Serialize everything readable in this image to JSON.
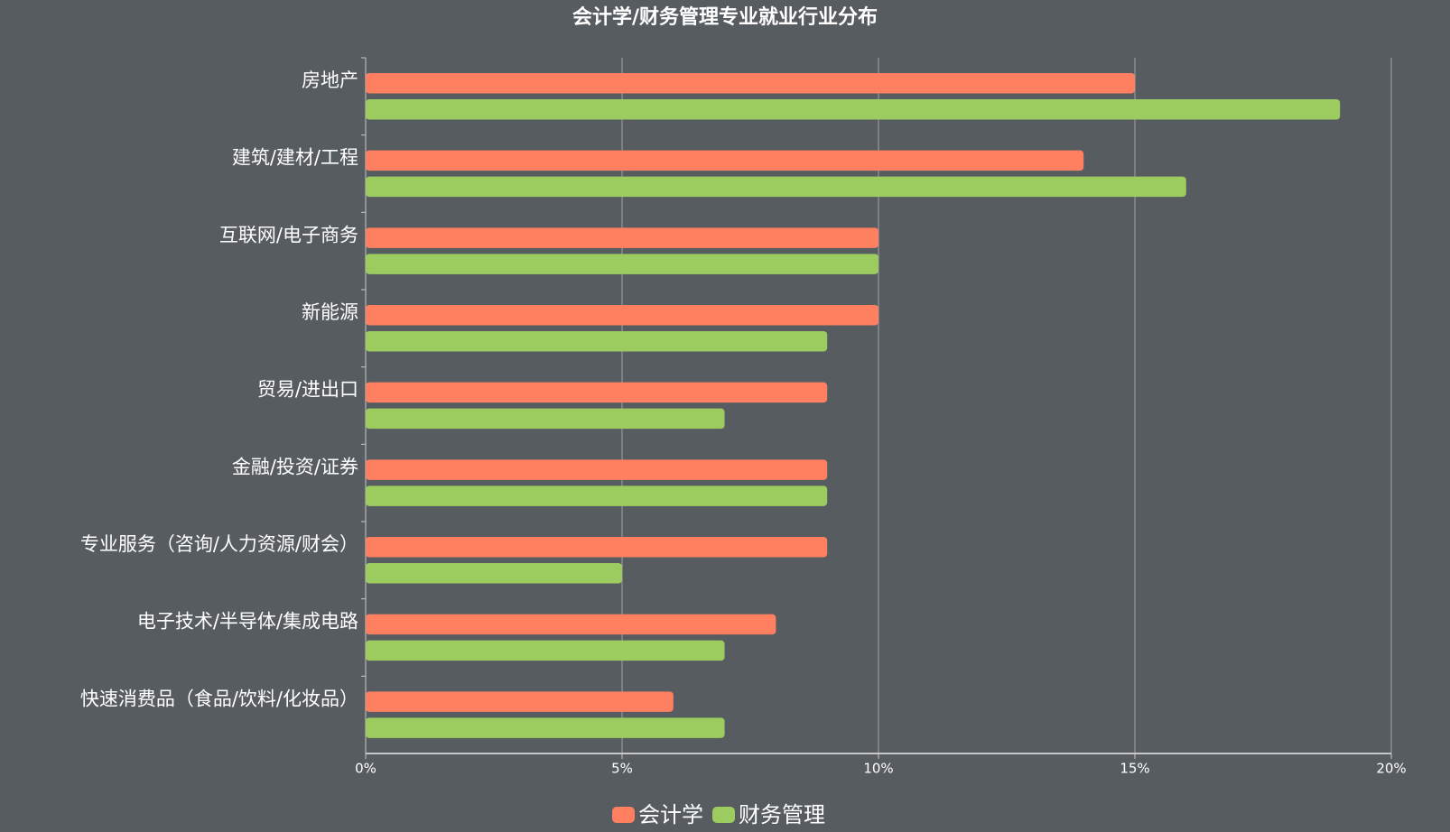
{
  "chart_data": {
    "type": "bar",
    "orientation": "horizontal",
    "title": "会计学/财务管理专业就业行业分布",
    "categories": [
      "房地产",
      "建筑/建材/工程",
      "互联网/电子商务",
      "新能源",
      "贸易/进出口",
      "金融/投资/证券",
      "专业服务（咨询/人力资源/财会）",
      "电子技术/半导体/集成电路",
      "快速消费品（食品/饮料/化妆品）"
    ],
    "series": [
      {
        "name": "会计学",
        "color": "#ff8060",
        "values": [
          15,
          14,
          10,
          10,
          9,
          9,
          9,
          8,
          6
        ]
      },
      {
        "name": "财务管理",
        "color": "#9ccb60",
        "values": [
          19,
          16,
          10,
          9,
          7,
          9,
          5,
          7,
          7
        ]
      }
    ],
    "xlim": [
      0,
      20
    ],
    "xticks": [
      {
        "value": 0,
        "label": "0%"
      },
      {
        "value": 5,
        "label": "5%"
      },
      {
        "value": 10,
        "label": "10%"
      },
      {
        "value": 15,
        "label": "15%"
      },
      {
        "value": 20,
        "label": "20%"
      }
    ],
    "grid": true,
    "legend": "bottom"
  }
}
